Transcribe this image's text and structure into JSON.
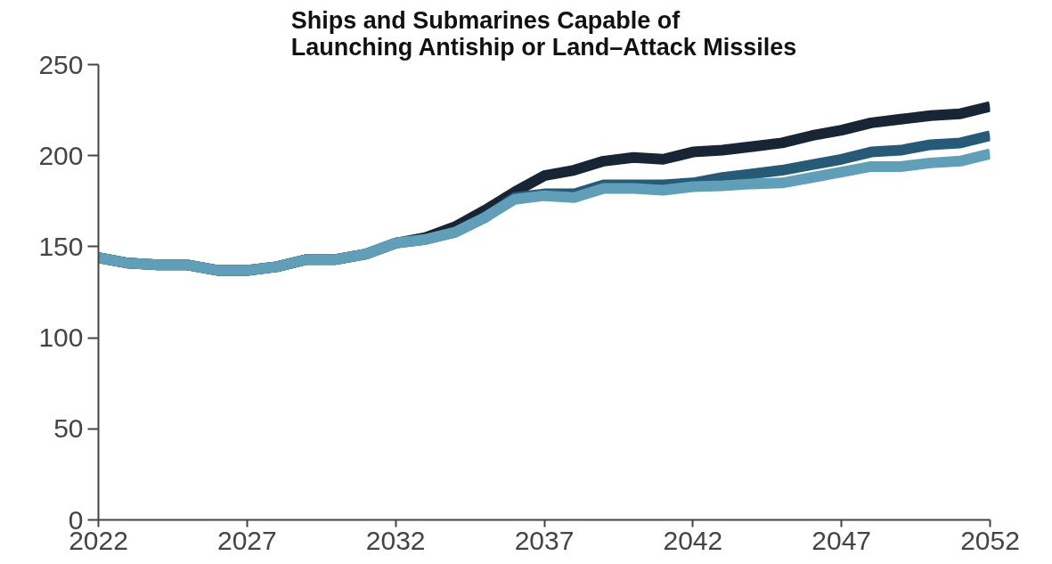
{
  "chart_data": {
    "type": "line",
    "title": "Ships and Submarines Capable of\nLaunching Antiship or Land–Attack Missiles",
    "x": [
      2022,
      2023,
      2024,
      2025,
      2026,
      2027,
      2028,
      2029,
      2030,
      2031,
      2032,
      2033,
      2034,
      2035,
      2036,
      2037,
      2038,
      2039,
      2040,
      2041,
      2042,
      2043,
      2044,
      2045,
      2046,
      2047,
      2048,
      2049,
      2050,
      2051,
      2052
    ],
    "series": [
      {
        "color": "#172535",
        "values": [
          144,
          141,
          140,
          140,
          137,
          137,
          139,
          143,
          143,
          146,
          152,
          155,
          161,
          170,
          180,
          189,
          192,
          197,
          199,
          198,
          202,
          203,
          205,
          207,
          211,
          214,
          218,
          220,
          222,
          223,
          227
        ]
      },
      {
        "color": "#265a77",
        "values": [
          144,
          141,
          140,
          140,
          137,
          137,
          139,
          143,
          143,
          146,
          152,
          154,
          158,
          166,
          177,
          179,
          179,
          184,
          184,
          184,
          185,
          188,
          190,
          192,
          195,
          198,
          202,
          203,
          206,
          207,
          211
        ]
      },
      {
        "color": "#619fb8",
        "values": [
          144,
          141,
          140,
          140,
          137,
          137,
          139,
          143,
          143,
          146,
          152,
          154,
          158,
          166,
          176,
          178,
          177,
          182,
          182,
          181,
          183,
          183.5,
          184.5,
          185,
          188,
          191,
          194,
          194,
          196,
          197,
          201
        ]
      }
    ],
    "xlim": [
      2022,
      2052
    ],
    "xticks": [
      2022,
      2027,
      2032,
      2037,
      2042,
      2047,
      2052
    ],
    "ylim": [
      0,
      250
    ],
    "yticks": [
      0,
      50,
      100,
      150,
      200,
      250
    ],
    "grid": false,
    "line_style": "solid",
    "marker": "none"
  }
}
